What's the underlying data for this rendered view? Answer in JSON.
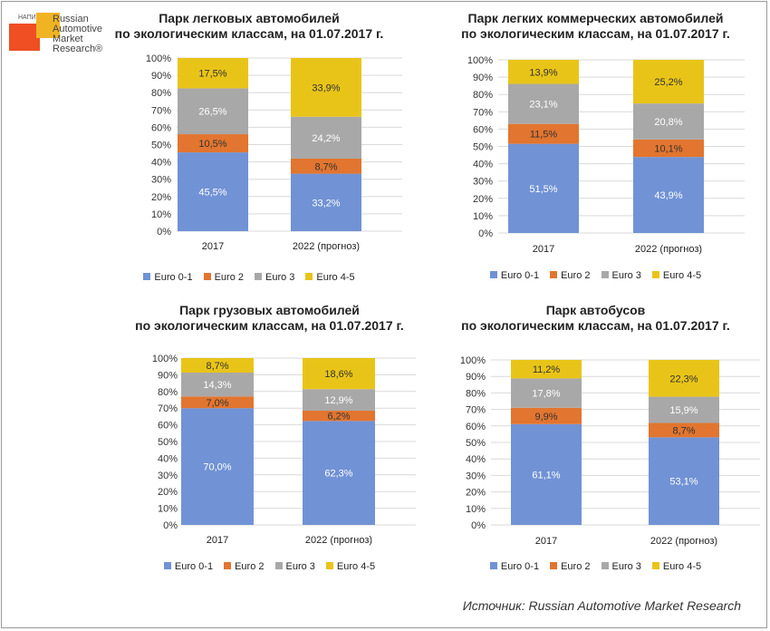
{
  "logo": {
    "small_text": "НАПИ",
    "name": "Russian Automotive Market Research®"
  },
  "source": "Источник: Russian Automotive Market Research",
  "legend": [
    "Euro 0-1",
    "Euro 2",
    "Euro 3",
    "Euro 4-5"
  ],
  "colors": {
    "Euro 0-1": "#7192d5",
    "Euro 2": "#e2752f",
    "Euro 3": "#a8a8a8",
    "Euro 4-5": "#e9c418"
  },
  "chart_data": [
    {
      "type": "bar",
      "stacked": true,
      "title_lines": [
        "Парк легковых автомобилей",
        "по экологическим классам, на 01.07.2017 г."
      ],
      "categories": [
        "2017",
        "2022 (прогноз)"
      ],
      "series": [
        {
          "name": "Euro 0-1",
          "values": [
            45.5,
            33.2
          ],
          "labels": [
            "45,5%",
            "33,2%"
          ]
        },
        {
          "name": "Euro 2",
          "values": [
            10.5,
            8.7
          ],
          "labels": [
            "10,5%",
            "8,7%"
          ]
        },
        {
          "name": "Euro 3",
          "values": [
            26.5,
            24.2
          ],
          "labels": [
            "26,5%",
            "24,2%"
          ]
        },
        {
          "name": "Euro 4-5",
          "values": [
            17.5,
            33.9
          ],
          "labels": [
            "17,5%",
            "33,9%"
          ]
        }
      ],
      "ylim": [
        0,
        100
      ],
      "yticks": [
        "0%",
        "10%",
        "20%",
        "30%",
        "40%",
        "50%",
        "60%",
        "70%",
        "80%",
        "90%",
        "100%"
      ],
      "legend_position": "bottom"
    },
    {
      "type": "bar",
      "stacked": true,
      "title_lines": [
        "Парк легких коммерческих автомобилей",
        "по экологическим классам, на 01.07.2017 г."
      ],
      "categories": [
        "2017",
        "2022 (прогноз)"
      ],
      "series": [
        {
          "name": "Euro 0-1",
          "values": [
            51.5,
            43.9
          ],
          "labels": [
            "51,5%",
            "43,9%"
          ]
        },
        {
          "name": "Euro 2",
          "values": [
            11.5,
            10.1
          ],
          "labels": [
            "11,5%",
            "10,1%"
          ]
        },
        {
          "name": "Euro 3",
          "values": [
            23.1,
            20.8
          ],
          "labels": [
            "23,1%",
            "20,8%"
          ]
        },
        {
          "name": "Euro 4-5",
          "values": [
            13.9,
            25.2
          ],
          "labels": [
            "13,9%",
            "25,2%"
          ]
        }
      ],
      "ylim": [
        0,
        100
      ],
      "yticks": [
        "0%",
        "10%",
        "20%",
        "30%",
        "40%",
        "50%",
        "60%",
        "70%",
        "80%",
        "90%",
        "100%"
      ],
      "legend_position": "bottom"
    },
    {
      "type": "bar",
      "stacked": true,
      "title_lines": [
        "Парк грузовых автомобилей",
        "по экологическим классам, на 01.07.2017 г."
      ],
      "categories": [
        "2017",
        "2022 (прогноз)"
      ],
      "series": [
        {
          "name": "Euro 0-1",
          "values": [
            70.0,
            62.3
          ],
          "labels": [
            "70,0%",
            "62,3%"
          ]
        },
        {
          "name": "Euro 2",
          "values": [
            7.0,
            6.2
          ],
          "labels": [
            "7,0%",
            "6,2%"
          ]
        },
        {
          "name": "Euro 3",
          "values": [
            14.3,
            12.9
          ],
          "labels": [
            "14,3%",
            "12,9%"
          ]
        },
        {
          "name": "Euro 4-5",
          "values": [
            8.7,
            18.6
          ],
          "labels": [
            "8,7%",
            "18,6%"
          ]
        }
      ],
      "ylim": [
        0,
        100
      ],
      "yticks": [
        "0%",
        "10%",
        "20%",
        "30%",
        "40%",
        "50%",
        "60%",
        "70%",
        "80%",
        "90%",
        "100%"
      ],
      "legend_position": "bottom"
    },
    {
      "type": "bar",
      "stacked": true,
      "title_lines": [
        "Парк автобусов",
        "по экологическим классам, на 01.07.2017 г."
      ],
      "categories": [
        "2017",
        "2022 (прогноз)"
      ],
      "series": [
        {
          "name": "Euro 0-1",
          "values": [
            61.1,
            53.1
          ],
          "labels": [
            "61,1%",
            "53,1%"
          ]
        },
        {
          "name": "Euro 2",
          "values": [
            9.9,
            8.7
          ],
          "labels": [
            "9,9%",
            "8,7%"
          ]
        },
        {
          "name": "Euro 3",
          "values": [
            17.8,
            15.9
          ],
          "labels": [
            "17,8%",
            "15,9%"
          ]
        },
        {
          "name": "Euro 4-5",
          "values": [
            11.2,
            22.3
          ],
          "labels": [
            "11,2%",
            "22,3%"
          ]
        }
      ],
      "ylim": [
        0,
        100
      ],
      "yticks": [
        "0%",
        "10%",
        "20%",
        "30%",
        "40%",
        "50%",
        "60%",
        "70%",
        "80%",
        "90%",
        "100%"
      ],
      "legend_position": "bottom"
    }
  ]
}
